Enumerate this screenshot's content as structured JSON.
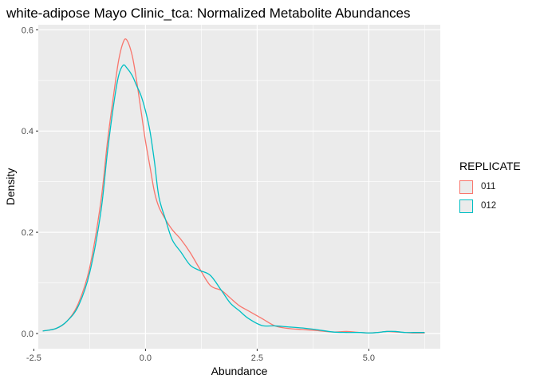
{
  "chart_data": {
    "type": "density",
    "title": "white-adipose Mayo Clinic_tca: Normalized Metabolite Abundances",
    "xlabel": "Abundance",
    "ylabel": "Density",
    "xlim": [
      -2.4,
      6.6
    ],
    "ylim": [
      -0.03,
      0.61
    ],
    "xticks": [
      -2.5,
      0.0,
      2.5,
      5.0
    ],
    "xtick_labels": [
      "-2.5",
      "0.0",
      "2.5",
      "5.0"
    ],
    "yticks": [
      0.0,
      0.2,
      0.4,
      0.6
    ],
    "ytick_labels": [
      "0.0",
      "0.2",
      "0.4",
      "0.6"
    ],
    "panel_background": "#ebebeb",
    "grid": true,
    "legend": {
      "title": "REPLICATE",
      "position": "right"
    },
    "series": [
      {
        "name": "011",
        "color": "#F8766D",
        "x": [
          -2.3,
          -2.0,
          -1.75,
          -1.5,
          -1.25,
          -1.0,
          -0.85,
          -0.7,
          -0.6,
          -0.5,
          -0.42,
          -0.3,
          -0.2,
          -0.1,
          0.0,
          0.1,
          0.2,
          0.3,
          0.45,
          0.6,
          0.8,
          1.0,
          1.2,
          1.45,
          1.7,
          1.9,
          2.1,
          2.3,
          2.6,
          2.9,
          3.2,
          3.5,
          3.8,
          4.2,
          4.5,
          4.8,
          5.0,
          5.2,
          5.4,
          5.6,
          5.8,
          6.0,
          6.25
        ],
        "y": [
          0.005,
          0.01,
          0.025,
          0.06,
          0.13,
          0.26,
          0.38,
          0.48,
          0.54,
          0.575,
          0.58,
          0.55,
          0.5,
          0.44,
          0.38,
          0.33,
          0.28,
          0.25,
          0.225,
          0.205,
          0.185,
          0.16,
          0.13,
          0.095,
          0.085,
          0.07,
          0.055,
          0.045,
          0.03,
          0.015,
          0.01,
          0.008,
          0.006,
          0.003,
          0.004,
          0.002,
          0.001,
          0.002,
          0.004,
          0.003,
          0.002,
          0.001,
          0.001
        ]
      },
      {
        "name": "012",
        "color": "#00BFC4",
        "x": [
          -2.3,
          -2.0,
          -1.75,
          -1.5,
          -1.25,
          -1.0,
          -0.85,
          -0.7,
          -0.6,
          -0.5,
          -0.42,
          -0.3,
          -0.2,
          -0.1,
          0.0,
          0.1,
          0.2,
          0.3,
          0.45,
          0.6,
          0.8,
          1.0,
          1.2,
          1.45,
          1.7,
          1.9,
          2.1,
          2.3,
          2.6,
          2.9,
          3.2,
          3.5,
          3.8,
          4.2,
          4.5,
          4.8,
          5.0,
          5.2,
          5.4,
          5.6,
          5.8,
          6.0,
          6.25
        ],
        "y": [
          0.005,
          0.01,
          0.025,
          0.055,
          0.12,
          0.24,
          0.36,
          0.46,
          0.51,
          0.53,
          0.525,
          0.51,
          0.49,
          0.47,
          0.44,
          0.4,
          0.34,
          0.27,
          0.225,
          0.185,
          0.16,
          0.135,
          0.125,
          0.115,
          0.085,
          0.06,
          0.045,
          0.03,
          0.016,
          0.015,
          0.013,
          0.011,
          0.008,
          0.003,
          0.002,
          0.002,
          0.001,
          0.002,
          0.004,
          0.004,
          0.002,
          0.002,
          0.002
        ]
      }
    ]
  }
}
